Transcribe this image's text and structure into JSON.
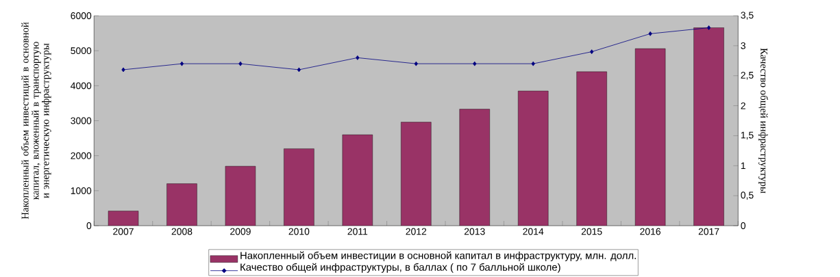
{
  "chart_data": {
    "type": "bar",
    "categories": [
      "2007",
      "2008",
      "2009",
      "2010",
      "2011",
      "2012",
      "2013",
      "2014",
      "2015",
      "2016",
      "2017"
    ],
    "ylabel": "Накопленный объем инвестиций в основной капитал, вложенный в транспортую и энергетическую инфраструктуры",
    "y2label": "Качество общей инфраструктуры",
    "series": [
      {
        "name": "Накопленный объем инвестиции в основной капитал в инфраструктуру, млн. долл.",
        "color": "#993366",
        "values": [
          420,
          1200,
          1700,
          2200,
          2600,
          2960,
          3330,
          3850,
          4400,
          5060,
          5660
        ]
      },
      {
        "name": "Качество общей инфраструктуры, в баллах  ( по 7 балльной школе)",
        "type": "line",
        "axis": "y2",
        "color": "#000080",
        "marker": "diamond",
        "values": [
          2.6,
          2.7,
          2.7,
          2.6,
          2.8,
          2.7,
          2.7,
          2.7,
          2.9,
          3.2,
          3.3
        ]
      }
    ],
    "ylim": [
      0,
      6000
    ],
    "yticks": [
      0,
      1000,
      2000,
      3000,
      4000,
      5000,
      6000
    ],
    "y2lim": [
      0,
      3.5
    ],
    "y2ticks": [
      0,
      {
        "value": 0.5,
        "label": "0,5"
      },
      1,
      {
        "value": 1.5,
        "label": "1,5"
      },
      2,
      {
        "value": 2.5,
        "label": "2,5"
      },
      3,
      {
        "value": 3.5,
        "label": "3,5"
      }
    ],
    "legend": "bottom"
  }
}
